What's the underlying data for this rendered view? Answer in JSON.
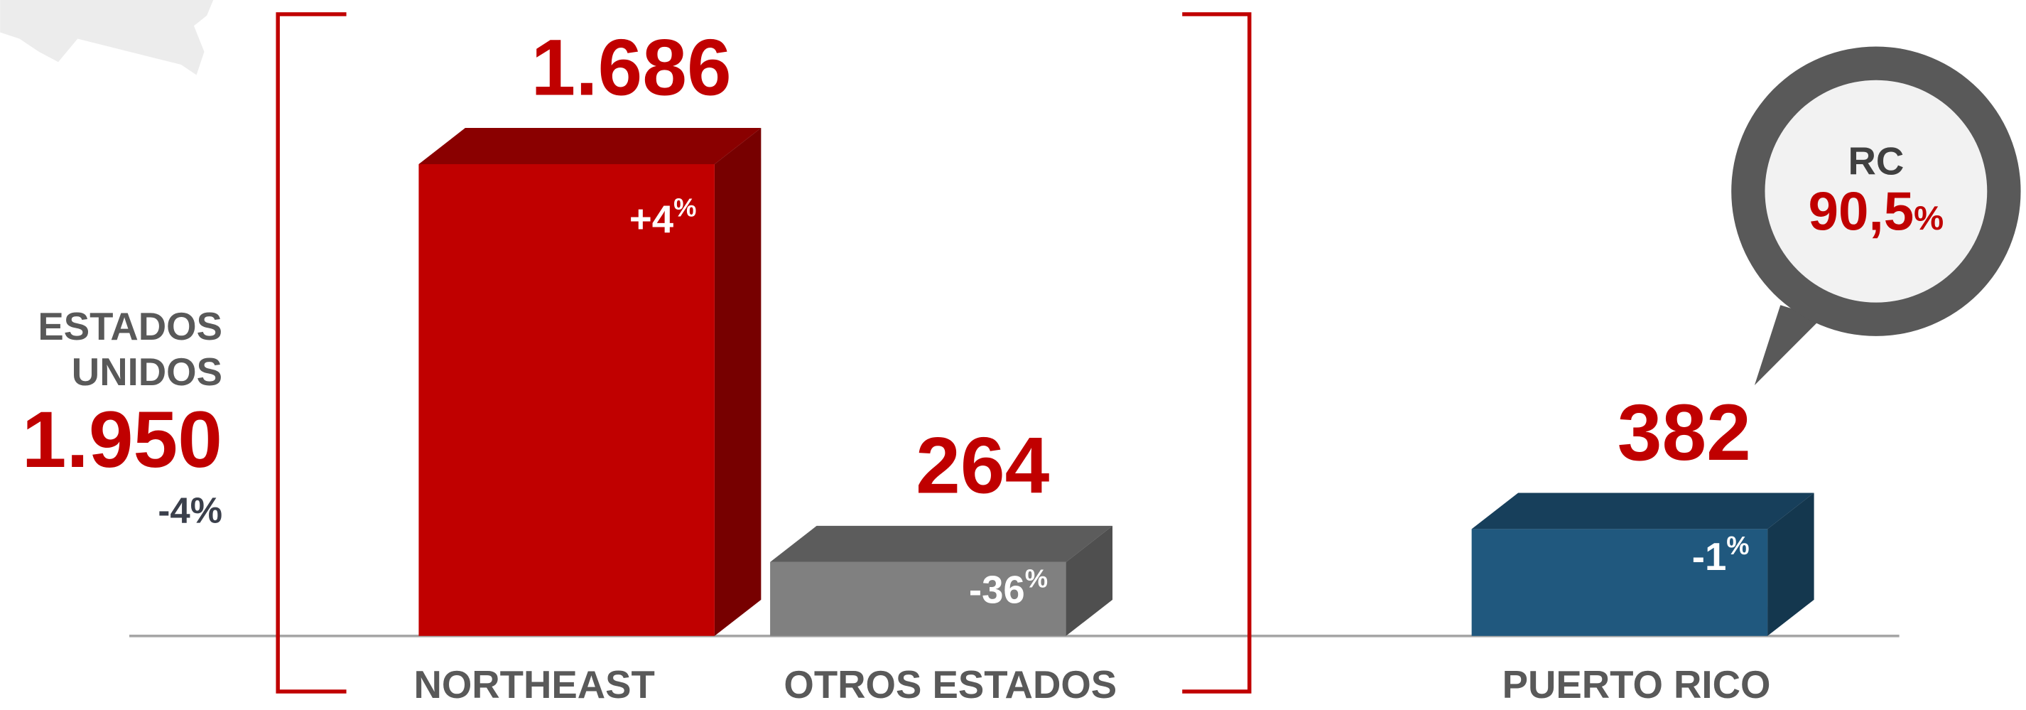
{
  "chart_data": {
    "type": "bar3d",
    "categories": [
      "NORTHEAST",
      "OTROS ESTADOS",
      "PUERTO RICO"
    ],
    "values": [
      1686,
      264,
      382
    ],
    "value_labels": [
      "1.686",
      "264",
      "382"
    ],
    "changes": [
      {
        "number": "+4",
        "unit": "%"
      },
      {
        "number": "-36",
        "unit": "%"
      },
      {
        "number": "-1",
        "unit": "%"
      }
    ],
    "colors": [
      "#c00000",
      "#808080",
      "#20587e"
    ],
    "summary": {
      "label": [
        "ESTADOS",
        "UNIDOS"
      ],
      "value": 1950,
      "value_label": "1.950",
      "change": "-4%"
    },
    "callout": {
      "label": "RC",
      "value": 90.5,
      "value_label": "90,5",
      "unit": "%"
    }
  }
}
